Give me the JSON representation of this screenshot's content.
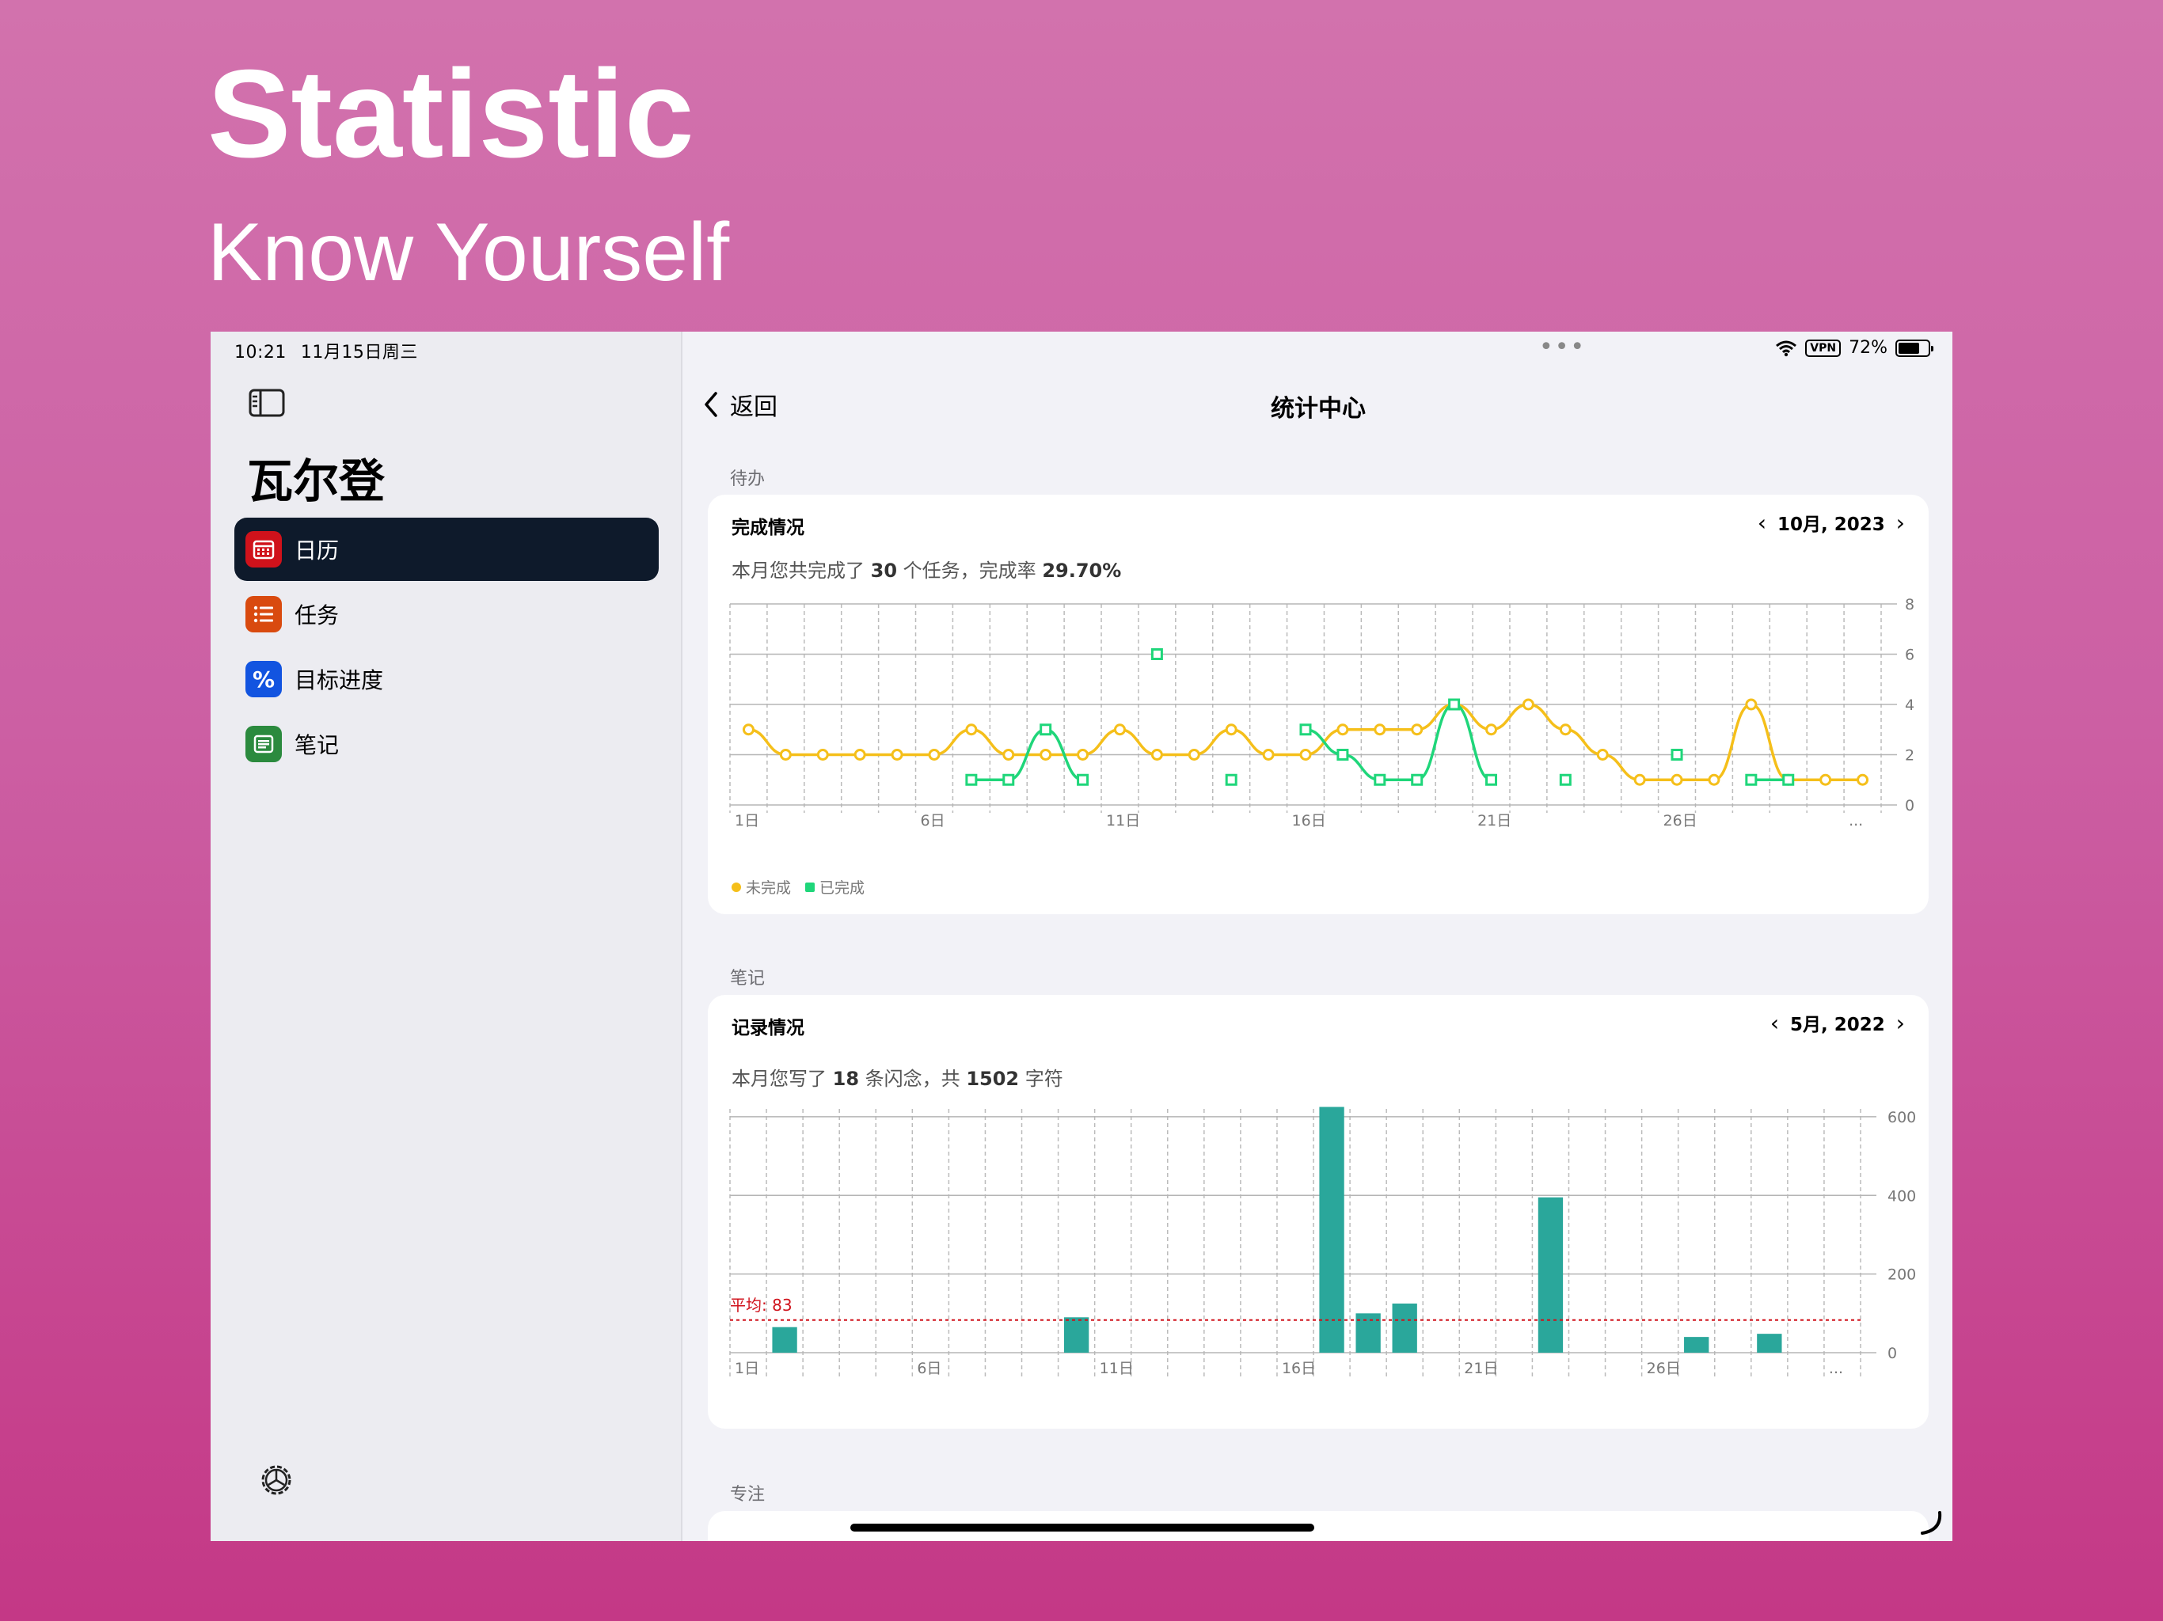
{
  "promo": {
    "title": "Statistic",
    "subtitle": "Know Yourself"
  },
  "status": {
    "time": "10:21",
    "date": "11月15日周三",
    "vpn": "VPN",
    "battery": "72%",
    "battery_level": 0.72
  },
  "sidebar": {
    "title": "瓦尔登",
    "items": [
      {
        "label": "日历",
        "icon": "calendar-icon",
        "color": "#d0121b",
        "active": true
      },
      {
        "label": "任务",
        "icon": "list-icon",
        "color": "#d94a0f",
        "active": false
      },
      {
        "label": "目标进度",
        "icon": "percent-icon",
        "color": "#1254e0",
        "active": false
      },
      {
        "label": "笔记",
        "icon": "note-icon",
        "color": "#2b8a3e",
        "active": false
      }
    ]
  },
  "header": {
    "back_label": "返回",
    "title": "统计中心"
  },
  "todo": {
    "section_label": "待办",
    "card_title": "完成情况",
    "period": "10月, 2023",
    "summary_prefix": "本月您共完成了 ",
    "summary_count": "30",
    "summary_mid": " 个任务，完成率 ",
    "summary_rate": "29.70%"
  },
  "notes": {
    "section_label": "笔记",
    "card_title": "记录情况",
    "period": "5月, 2022",
    "summary_prefix": "本月您写了 ",
    "summary_count": "18",
    "summary_mid": " 条闪念，共 ",
    "summary_chars": "1502",
    "summary_suffix": " 字符"
  },
  "focus": {
    "section_label": "专注"
  },
  "chart_data": [
    {
      "type": "line",
      "x": [
        1,
        2,
        3,
        4,
        5,
        6,
        7,
        8,
        9,
        10,
        11,
        12,
        13,
        14,
        15,
        16,
        17,
        18,
        19,
        20,
        21,
        22,
        23,
        24,
        25,
        26,
        27,
        28,
        29,
        30,
        31
      ],
      "x_tick_labels": [
        "1日",
        "6日",
        "11日",
        "16日",
        "21日",
        "26日",
        "..."
      ],
      "ylim": [
        0,
        8
      ],
      "y_ticks": [
        0,
        2,
        4,
        6,
        8
      ],
      "grid": true,
      "legend_position": "bottom-left",
      "series": [
        {
          "name": "未完成",
          "color": "#f5bf1a",
          "marker": "circle",
          "values": [
            3,
            2,
            2,
            2,
            2,
            2,
            3,
            2,
            2,
            2,
            3,
            2,
            2,
            3,
            2,
            2,
            3,
            3,
            3,
            4,
            3,
            4,
            3,
            2,
            1,
            1,
            1,
            4,
            1,
            1,
            1
          ]
        },
        {
          "name": "已完成",
          "color": "#1fd67a",
          "marker": "square",
          "values": [
            null,
            null,
            null,
            null,
            null,
            null,
            1,
            1,
            3,
            1,
            null,
            6,
            null,
            1,
            null,
            3,
            2,
            1,
            1,
            4,
            1,
            null,
            1,
            null,
            null,
            2,
            null,
            1,
            1,
            null,
            null
          ]
        }
      ]
    },
    {
      "type": "bar",
      "x": [
        1,
        2,
        3,
        4,
        5,
        6,
        7,
        8,
        9,
        10,
        11,
        12,
        13,
        14,
        15,
        16,
        17,
        18,
        19,
        20,
        21,
        22,
        23,
        24,
        25,
        26,
        27,
        28,
        29,
        30,
        31
      ],
      "x_tick_labels": [
        "1日",
        "6日",
        "11日",
        "16日",
        "21日",
        "26日",
        "..."
      ],
      "ylim": [
        0,
        620
      ],
      "y_ticks": [
        0,
        200,
        400,
        600
      ],
      "grid": true,
      "color": "#2aa79b",
      "values": [
        0,
        65,
        0,
        0,
        0,
        0,
        0,
        0,
        0,
        90,
        0,
        0,
        0,
        0,
        0,
        0,
        625,
        100,
        125,
        0,
        0,
        0,
        395,
        0,
        0,
        0,
        40,
        0,
        48,
        0,
        0
      ],
      "average": 83,
      "average_label": "平均: 83",
      "average_color": "#d0121b"
    }
  ]
}
